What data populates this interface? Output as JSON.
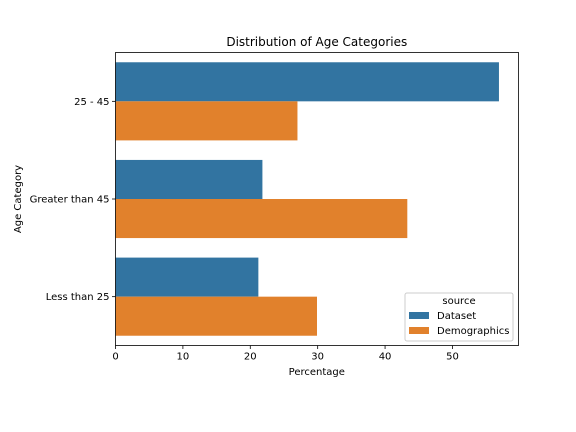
{
  "chart_data": {
    "type": "bar",
    "orientation": "horizontal",
    "title": "Distribution of Age Categories",
    "xlabel": "Percentage",
    "ylabel": "Age Category",
    "categories": [
      "25 - 45",
      "Greater than 45",
      "Less than 25"
    ],
    "series": [
      {
        "name": "Dataset",
        "color": "#3274a1",
        "values": [
          56.9,
          21.8,
          21.2
        ]
      },
      {
        "name": "Demographics",
        "color": "#e1812c",
        "values": [
          27.0,
          43.3,
          29.9
        ]
      }
    ],
    "xlim": [
      0,
      59.8
    ],
    "xticks": [
      0,
      10,
      20,
      30,
      40,
      50
    ],
    "grid": false,
    "legend": {
      "title": "source",
      "placement": "lower-right"
    }
  }
}
